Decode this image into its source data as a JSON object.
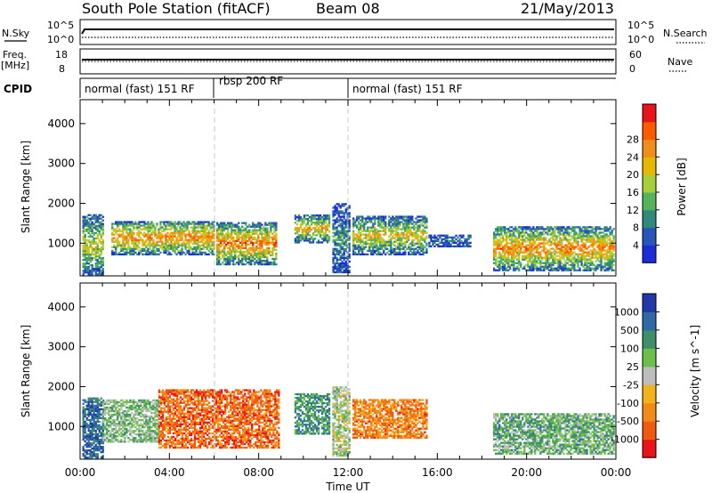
{
  "header": {
    "title": "South Pole Station (fitACF)",
    "beam": "Beam 08",
    "date": "21/May/2013"
  },
  "status_panels": {
    "nsky_label": "N.Sky",
    "nsearch_label": "N.Search",
    "noise_ticks_left": [
      "10^5",
      "10^0"
    ],
    "noise_ticks_right": [
      "10^5",
      "10^0"
    ],
    "freq_label_1": "Freq.",
    "freq_label_2": "[MHz]",
    "freq_ticks": [
      "18",
      "8"
    ],
    "nave_label": "Nave",
    "nave_ticks": [
      "60",
      "0"
    ],
    "cpid_label": "CPID",
    "cpid_segments": [
      {
        "label": "normal (fast) 151 RF",
        "start_hour": 0,
        "end_hour": 6
      },
      {
        "label": "rbsp 200 RF",
        "start_hour": 6,
        "end_hour": 12
      },
      {
        "label": "normal (fast) 151 RF",
        "start_hour": 12,
        "end_hour": 24
      }
    ]
  },
  "chart_data": [
    {
      "type": "heatmap",
      "title": "",
      "xlabel": "Time UT",
      "ylabel": "Slant Range [km]",
      "xlim": [
        0,
        24
      ],
      "ylim": [
        180,
        4600
      ],
      "x_ticks": [
        "00:00",
        "04:00",
        "08:00",
        "12:00",
        "16:00",
        "20:00",
        "00:00"
      ],
      "y_ticks": [
        "1000",
        "2000",
        "3000",
        "4000"
      ],
      "colorbar": {
        "label": "Power [dB]",
        "range": [
          0,
          32
        ],
        "ticks": [
          "4",
          "8",
          "12",
          "16",
          "20",
          "24",
          "28"
        ],
        "colors": [
          "#1a2bd9",
          "#2a55b8",
          "#2f8a7c",
          "#55b45a",
          "#a8cf3a",
          "#e6b800",
          "#f28c1a",
          "#ff5a00",
          "#e8141a"
        ]
      },
      "segment_boundaries_hours": [
        6,
        12
      ],
      "echo_regions": [
        {
          "t0": 0.1,
          "t1": 1.0,
          "r0": 200,
          "r1": 1700,
          "level": 0.55
        },
        {
          "t0": 1.4,
          "t1": 6.0,
          "r0": 700,
          "r1": 1550,
          "level": 0.75
        },
        {
          "t0": 6.1,
          "t1": 8.8,
          "r0": 450,
          "r1": 1500,
          "level": 0.8
        },
        {
          "t0": 9.6,
          "t1": 11.2,
          "r0": 1000,
          "r1": 1700,
          "level": 0.65
        },
        {
          "t0": 11.3,
          "t1": 12.1,
          "r0": 250,
          "r1": 2000,
          "level": 0.3
        },
        {
          "t0": 12.2,
          "t1": 15.5,
          "r0": 700,
          "r1": 1650,
          "level": 0.6
        },
        {
          "t0": 15.6,
          "t1": 17.5,
          "r0": 900,
          "r1": 1200,
          "level": 0.25
        },
        {
          "t0": 18.5,
          "t1": 23.9,
          "r0": 300,
          "r1": 1400,
          "level": 0.75
        }
      ]
    },
    {
      "type": "heatmap",
      "title": "",
      "xlabel": "Time UT",
      "ylabel": "Slant Range [km]",
      "xlim": [
        0,
        24
      ],
      "ylim": [
        180,
        4600
      ],
      "x_ticks": [
        "00:00",
        "04:00",
        "08:00",
        "12:00",
        "16:00",
        "20:00",
        "00:00"
      ],
      "y_ticks": [
        "1000",
        "2000",
        "3000",
        "4000"
      ],
      "colorbar": {
        "label": "Velocity [m s^-1]",
        "ticks": [
          "1000",
          "500",
          "100",
          "25",
          "-25",
          "-100",
          "-500",
          "-1000"
        ],
        "colors": [
          "#1f3aa8",
          "#2f6aa6",
          "#3f8f6a",
          "#6cc04a",
          "#bdbdbd",
          "#f2b21a",
          "#f28a1a",
          "#f05a10",
          "#e8141a"
        ]
      },
      "segment_boundaries_hours": [
        6,
        12
      ],
      "echo_regions": [
        {
          "t0": 0.1,
          "t1": 1.0,
          "r0": 200,
          "r1": 1700,
          "v": 0.7
        },
        {
          "t0": 1.0,
          "t1": 3.5,
          "r0": 600,
          "r1": 1650,
          "v": 0.2
        },
        {
          "t0": 3.5,
          "t1": 8.9,
          "r0": 450,
          "r1": 1900,
          "v": -0.6
        },
        {
          "t0": 9.6,
          "t1": 11.2,
          "r0": 800,
          "r1": 1800,
          "v": 0.45
        },
        {
          "t0": 11.3,
          "t1": 12.1,
          "r0": 250,
          "r1": 2000,
          "v": 0.1
        },
        {
          "t0": 12.2,
          "t1": 15.5,
          "r0": 700,
          "r1": 1650,
          "v": -0.5
        },
        {
          "t0": 18.5,
          "t1": 23.9,
          "r0": 300,
          "r1": 1300,
          "v": 0.3
        }
      ]
    }
  ]
}
